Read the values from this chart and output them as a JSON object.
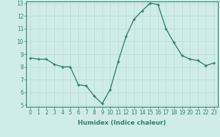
{
  "x": [
    0,
    1,
    2,
    3,
    4,
    5,
    6,
    7,
    8,
    9,
    10,
    11,
    12,
    13,
    14,
    15,
    16,
    17,
    18,
    19,
    20,
    21,
    22,
    23
  ],
  "y": [
    8.7,
    8.6,
    8.6,
    8.2,
    8.0,
    8.0,
    6.6,
    6.5,
    5.7,
    5.1,
    6.2,
    8.4,
    10.4,
    11.75,
    12.4,
    13.0,
    12.9,
    11.0,
    9.9,
    8.9,
    8.6,
    8.5,
    8.1,
    8.3
  ],
  "xlabel": "Humidex (Indice chaleur)",
  "ylim": [
    5,
    13
  ],
  "xlim": [
    -0.5,
    23.5
  ],
  "yticks": [
    5,
    6,
    7,
    8,
    9,
    10,
    11,
    12,
    13
  ],
  "xticks": [
    0,
    1,
    2,
    3,
    4,
    5,
    6,
    7,
    8,
    9,
    10,
    11,
    12,
    13,
    14,
    15,
    16,
    17,
    18,
    19,
    20,
    21,
    22,
    23
  ],
  "line_color": "#2e7d6e",
  "marker": "+",
  "bg_plot": "#d0ecea",
  "bg_fig": "#d0ecea",
  "grid_color": "#b8d8d4",
  "tick_color": "#2e7d6e",
  "xlabel_fontsize": 6.5,
  "xlabel_fontweight": "bold",
  "tick_fontsize": 5.5,
  "linewidth": 1.0,
  "markersize": 3.5
}
